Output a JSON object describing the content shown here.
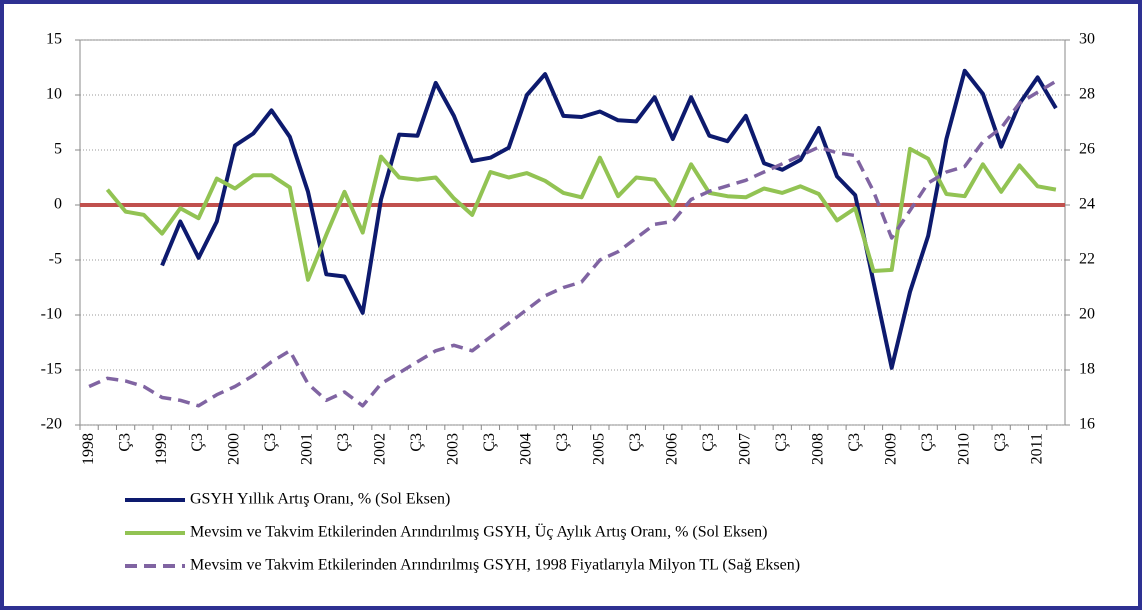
{
  "chart_data": {
    "type": "line",
    "categories": [
      "1998",
      null,
      "Ç3",
      null,
      "1999",
      null,
      "Ç3",
      null,
      "2000",
      null,
      "Ç3",
      null,
      "2001",
      null,
      "Ç3",
      null,
      "2002",
      null,
      "Ç3",
      null,
      "2003",
      null,
      "Ç3",
      null,
      "2004",
      null,
      "Ç3",
      null,
      "2005",
      null,
      "Ç3",
      null,
      "2006",
      null,
      "Ç3",
      null,
      "2007",
      null,
      "Ç3",
      null,
      "2008",
      null,
      "Ç3",
      null,
      "2009",
      null,
      "Ç3",
      null,
      "2010",
      null,
      "Ç3",
      null,
      "2011",
      null
    ],
    "series": [
      {
        "name": "GSYH Yıllık Artış Oranı, % (Sol Eksen)",
        "color": "#0d1a6e",
        "axis": "y",
        "values": [
          null,
          null,
          null,
          null,
          -5.5,
          -1.5,
          -4.8,
          -1.5,
          5.4,
          6.5,
          8.6,
          6.2,
          1.2,
          -6.3,
          -6.5,
          -9.8,
          0.5,
          6.4,
          6.3,
          11.1,
          8.1,
          4.0,
          4.3,
          5.2,
          10.0,
          11.9,
          8.1,
          8.0,
          8.5,
          7.7,
          7.6,
          9.8,
          6.0,
          9.8,
          6.3,
          5.8,
          8.1,
          3.8,
          3.2,
          4.1,
          7.0,
          2.6,
          0.9,
          -7.0,
          -14.8,
          -7.9,
          -2.8,
          6.0,
          12.2,
          10.1,
          5.3,
          9.2,
          11.6,
          8.8
        ]
      },
      {
        "name": "Mevsim ve Takvim Etkilerinden Arındırılmış GSYH, Üç Aylık Artış Oranı, % (Sol Eksen)",
        "color": "#92c353",
        "axis": "y",
        "values": [
          null,
          1.4,
          -0.6,
          -0.9,
          -2.6,
          -0.3,
          -1.2,
          2.4,
          1.5,
          2.7,
          2.7,
          1.6,
          -6.8,
          -2.7,
          1.2,
          -2.5,
          4.4,
          2.5,
          2.3,
          2.5,
          0.6,
          -0.9,
          3.0,
          2.5,
          2.9,
          2.2,
          1.1,
          0.7,
          4.3,
          0.8,
          2.5,
          2.3,
          0.0,
          3.7,
          1.1,
          0.8,
          0.7,
          1.5,
          1.1,
          1.7,
          1.0,
          -1.4,
          -0.3,
          -6.0,
          -5.9,
          5.1,
          4.2,
          1.0,
          0.8,
          3.7,
          1.2,
          3.6,
          1.7,
          1.4
        ]
      },
      {
        "name": "Mevsim ve Takvim Etkilerinden Arındırılmış GSYH, 1998 Fiyatlarıyla Milyon TL (Sağ Eksen)",
        "color": "#8064a2",
        "axis": "y2",
        "dashed": true,
        "values": [
          17.4,
          17.7,
          17.6,
          17.4,
          17.0,
          16.9,
          16.7,
          17.1,
          17.4,
          17.8,
          18.3,
          18.7,
          17.5,
          16.9,
          17.2,
          16.7,
          17.5,
          17.9,
          18.3,
          18.7,
          18.9,
          18.7,
          19.2,
          19.7,
          20.2,
          20.7,
          21.0,
          21.2,
          22.0,
          22.3,
          22.8,
          23.3,
          23.4,
          24.2,
          24.5,
          24.7,
          24.9,
          25.2,
          25.5,
          25.8,
          26.1,
          25.9,
          25.8,
          24.5,
          22.8,
          23.8,
          24.8,
          25.2,
          25.4,
          26.3,
          26.8,
          27.7,
          28.1,
          28.5
        ]
      }
    ],
    "reference_line": {
      "value": 0,
      "color": "#c0504d"
    },
    "ylim": [
      -20,
      15
    ],
    "yticks": [
      -20,
      -15,
      -10,
      -5,
      0,
      5,
      10,
      15
    ],
    "y2lim": [
      16,
      30
    ],
    "y2ticks": [
      16,
      18,
      20,
      22,
      24,
      26,
      28,
      30
    ],
    "grid": true,
    "legend": "bottom"
  }
}
